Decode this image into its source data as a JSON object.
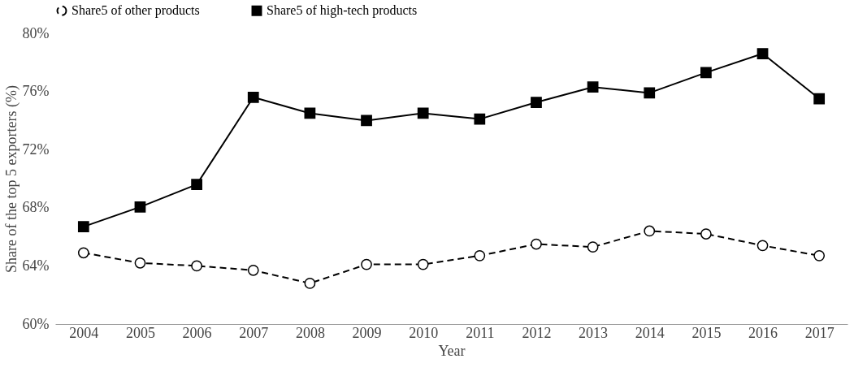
{
  "chart_data": {
    "type": "line",
    "xlabel": "Year",
    "ylabel": "Share of the top 5 exporters (%)",
    "categories": [
      "2004",
      "2005",
      "2006",
      "2007",
      "2008",
      "2009",
      "2010",
      "2011",
      "2012",
      "2013",
      "2014",
      "2015",
      "2016",
      "2017"
    ],
    "series": [
      {
        "name": "Share5 of other products",
        "color": "#000000",
        "marker": "circle",
        "line_style": "dashed",
        "values": [
          64.9,
          64.2,
          64.0,
          63.7,
          62.8,
          64.1,
          64.1,
          64.7,
          65.5,
          65.3,
          66.4,
          66.2,
          65.4,
          64.7
        ]
      },
      {
        "name": "Share5 of high-tech products",
        "color": "#000000",
        "marker": "square",
        "line_style": "solid",
        "values": [
          66.7,
          68.05,
          69.6,
          75.6,
          74.5,
          74.0,
          74.5,
          74.1,
          75.25,
          76.3,
          75.9,
          77.3,
          78.6,
          75.5
        ]
      }
    ],
    "ylim": [
      60,
      80
    ],
    "yticks": [
      {
        "value": 60,
        "label": "60%"
      },
      {
        "value": 64,
        "label": "64%"
      },
      {
        "value": 68,
        "label": "68%"
      },
      {
        "value": 72,
        "label": "72%"
      },
      {
        "value": 76,
        "label": "76%"
      },
      {
        "value": 80,
        "label": "80%"
      }
    ],
    "grid": false,
    "legend": "top"
  }
}
